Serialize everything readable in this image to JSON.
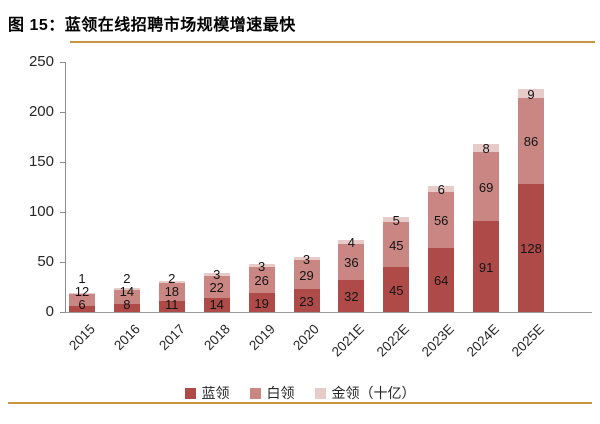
{
  "title": "图 15：蓝领在线招聘市场规模增速最快",
  "colors": {
    "accent_rule": "#C9953F",
    "axis": "#8C8C8C",
    "blue_collar": "#AE4B48",
    "white_collar": "#C98682",
    "gold_collar": "#E6CBC9"
  },
  "chart_data": {
    "type": "bar",
    "stacked": true,
    "title": "蓝领在线招聘市场规模增速最快",
    "unit_label": "十亿",
    "categories": [
      "2015",
      "2016",
      "2017",
      "2018",
      "2019",
      "2020",
      "2021E",
      "2022E",
      "2023E",
      "2024E",
      "2025E"
    ],
    "series": [
      {
        "name": "蓝领",
        "color": "#AE4B48",
        "values": [
          6,
          8,
          11,
          14,
          19,
          23,
          32,
          45,
          64,
          91,
          128
        ]
      },
      {
        "name": "白领",
        "color": "#C98682",
        "values": [
          12,
          14,
          18,
          22,
          26,
          29,
          36,
          45,
          56,
          69,
          86
        ]
      },
      {
        "name": "金领（十亿）",
        "color": "#E6CBC9",
        "values": [
          1,
          2,
          2,
          3,
          3,
          3,
          4,
          5,
          6,
          8,
          9
        ]
      }
    ],
    "ylim": [
      0,
      250
    ],
    "yticks": [
      0,
      50,
      100,
      150,
      200,
      250
    ],
    "grid": false,
    "legend_position": "bottom",
    "data_labels": "center"
  }
}
